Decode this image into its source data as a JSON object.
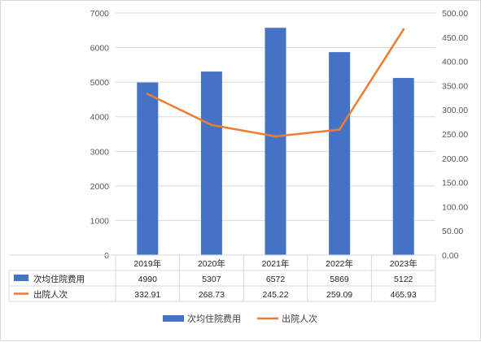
{
  "chart_data": {
    "type": "bar",
    "categories": [
      "2019年",
      "2020年",
      "2021年",
      "2022年",
      "2023年"
    ],
    "series": [
      {
        "name": "次均住院费用",
        "type": "bar",
        "axis": "left",
        "values": [
          4990,
          5307,
          6572,
          5869,
          5122
        ]
      },
      {
        "name": "出院人次",
        "type": "line",
        "axis": "right",
        "values": [
          332.91,
          268.73,
          245.22,
          259.09,
          465.93
        ]
      }
    ],
    "table_values": [
      [
        "4990",
        "5307",
        "6572",
        "5869",
        "5122"
      ],
      [
        "332.91",
        "268.73",
        "245.22",
        "259.09",
        "465.93"
      ]
    ],
    "ylim_left": [
      0,
      7000
    ],
    "yticks_left": [
      "0",
      "1000",
      "2000",
      "3000",
      "4000",
      "5000",
      "6000",
      "7000"
    ],
    "ylim_right": [
      0,
      500
    ],
    "yticks_right": [
      "0.00",
      "50.00",
      "100.00",
      "150.00",
      "200.00",
      "250.00",
      "300.00",
      "350.00",
      "400.00",
      "450.00",
      "500.00"
    ],
    "grid": true,
    "data_table": true,
    "legend_position": "bottom",
    "colors": {
      "bar": "#4472c4",
      "line": "#ed7d31",
      "grid": "#d9d9d9",
      "text": "#595959"
    }
  }
}
